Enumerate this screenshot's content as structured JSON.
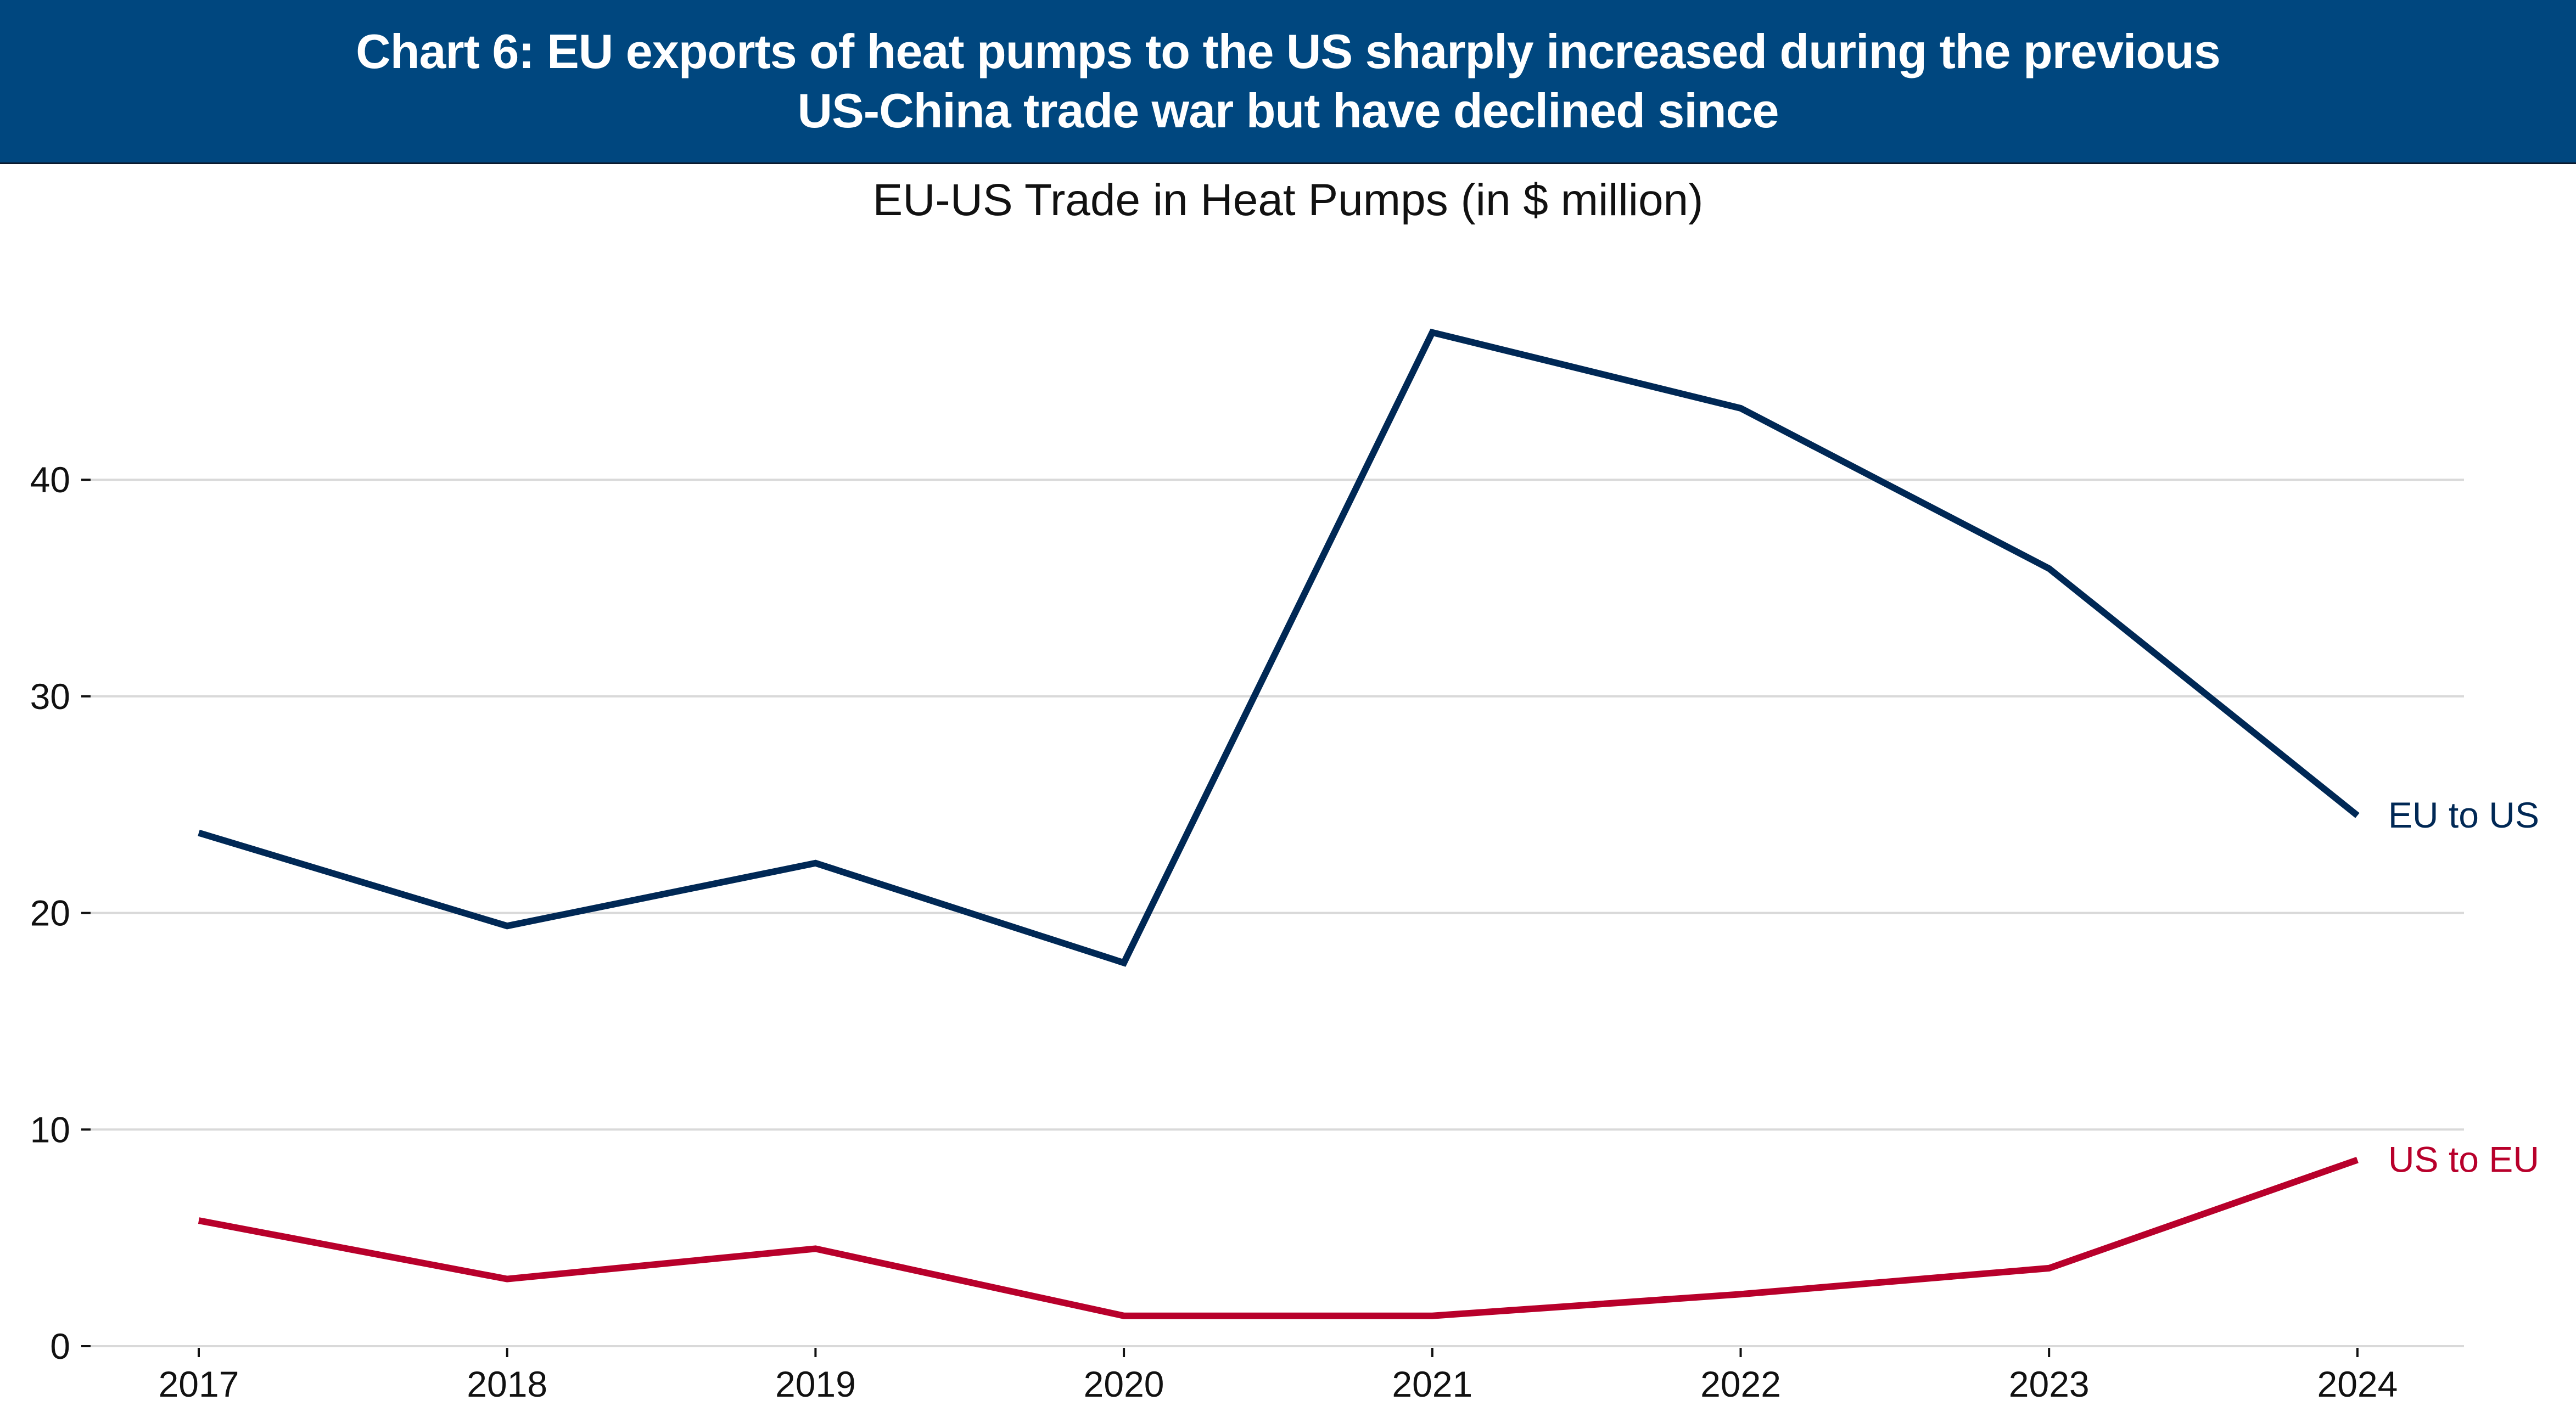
{
  "header": {
    "title_line1": "Chart 6: EU exports of heat pumps to the US sharply increased during the previous",
    "title_line2": "US-China trade war but have declined since"
  },
  "colors": {
    "header_bg": "#00477F",
    "eu_to_us": "#002855",
    "us_to_eu": "#B8002B",
    "grid": "#d9d9d9"
  },
  "chart_data": {
    "type": "line",
    "title": "EU-US Trade in Heat Pumps (in $ million)",
    "xlabel": "",
    "ylabel": "",
    "x": [
      "2017",
      "2018",
      "2019",
      "2020",
      "2021",
      "2022",
      "2023",
      "2024"
    ],
    "ylim": [
      0,
      48
    ],
    "yticks": [
      0,
      10,
      20,
      30,
      40
    ],
    "grid": true,
    "legend": "direct labels at right end of lines",
    "series": [
      {
        "name": "EU to US",
        "color": "#002855",
        "values": [
          23.7,
          19.4,
          22.3,
          17.7,
          46.8,
          43.3,
          35.9,
          24.5
        ]
      },
      {
        "name": "US to EU",
        "color": "#B8002B",
        "values": [
          5.8,
          3.1,
          4.5,
          1.4,
          1.4,
          2.4,
          3.6,
          8.6
        ]
      }
    ]
  }
}
